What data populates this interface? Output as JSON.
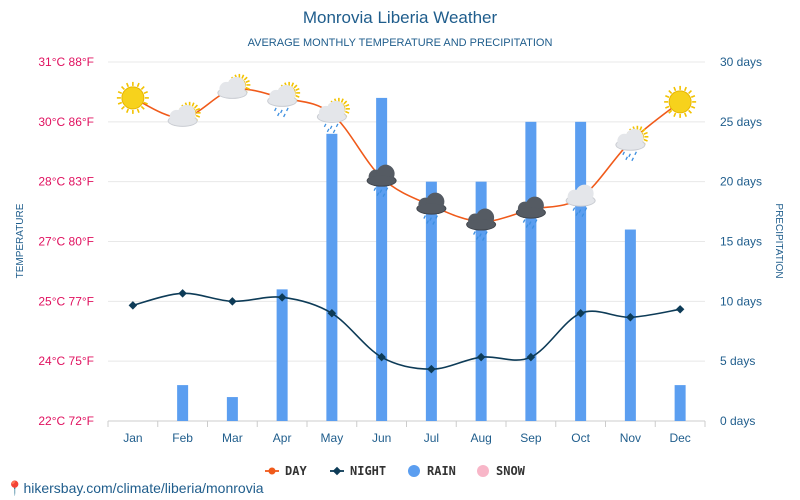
{
  "colors": {
    "day": "#f05a1a",
    "night": "#0d3b57",
    "rain": "#5b9ef0",
    "snow": "#f8b6c8",
    "grid": "#e8e8e8"
  },
  "chart_data": {
    "type": "line",
    "title": "Monrovia Liberia Weather",
    "subtitle": "AVERAGE MONTHLY TEMPERATURE AND PRECIPITATION",
    "ylabel_left": "TEMPERATURE",
    "ylabel_right": "PRECIPITATION",
    "categories": [
      "Jan",
      "Feb",
      "Mar",
      "Apr",
      "May",
      "Jun",
      "Jul",
      "Aug",
      "Sep",
      "Oct",
      "Nov",
      "Dec"
    ],
    "left_ticks": [
      "31°C 88°F",
      "30°C 86°F",
      "28°C 83°F",
      "27°C 80°F",
      "25°C 77°F",
      "24°C 75°F",
      "22°C 72°F"
    ],
    "right_ticks": [
      "30 days",
      "25 days",
      "20 days",
      "15 days",
      "10 days",
      "5 days",
      "0 days"
    ],
    "ylim_left": [
      22.2,
      31.2
    ],
    "ylim_right": [
      0,
      30
    ],
    "series": [
      {
        "name": "DAY",
        "kind": "line",
        "values": [
          30.3,
          29.8,
          30.5,
          30.3,
          29.9,
          28.3,
          27.6,
          27.2,
          27.5,
          27.8,
          29.2,
          30.2
        ]
      },
      {
        "name": "NIGHT",
        "kind": "line",
        "values": [
          25.1,
          25.4,
          25.2,
          25.3,
          24.9,
          23.8,
          23.5,
          23.8,
          23.8,
          24.9,
          24.8,
          25.0
        ]
      },
      {
        "name": "RAIN",
        "kind": "bar",
        "values": [
          0,
          3,
          2,
          11,
          24,
          27,
          20,
          20,
          25,
          25,
          16,
          3
        ]
      },
      {
        "name": "SNOW",
        "kind": "bar",
        "values": [
          0,
          0,
          0,
          0,
          0,
          0,
          0,
          0,
          0,
          0,
          0,
          0
        ]
      }
    ],
    "weather_icons": [
      "sun-icon",
      "partly-cloudy-icon",
      "partly-cloudy-icon",
      "cloud-rain-sun-icon",
      "cloud-rain-sun-icon",
      "storm-cloud-icon",
      "storm-cloud-icon",
      "storm-cloud-icon",
      "storm-cloud-icon",
      "cloud-rain-icon",
      "cloud-rain-sun-icon",
      "sun-icon"
    ],
    "legend": [
      "DAY",
      "NIGHT",
      "RAIN",
      "SNOW"
    ]
  },
  "source_text": "hikersbay.com/climate/liberia/monrovia"
}
